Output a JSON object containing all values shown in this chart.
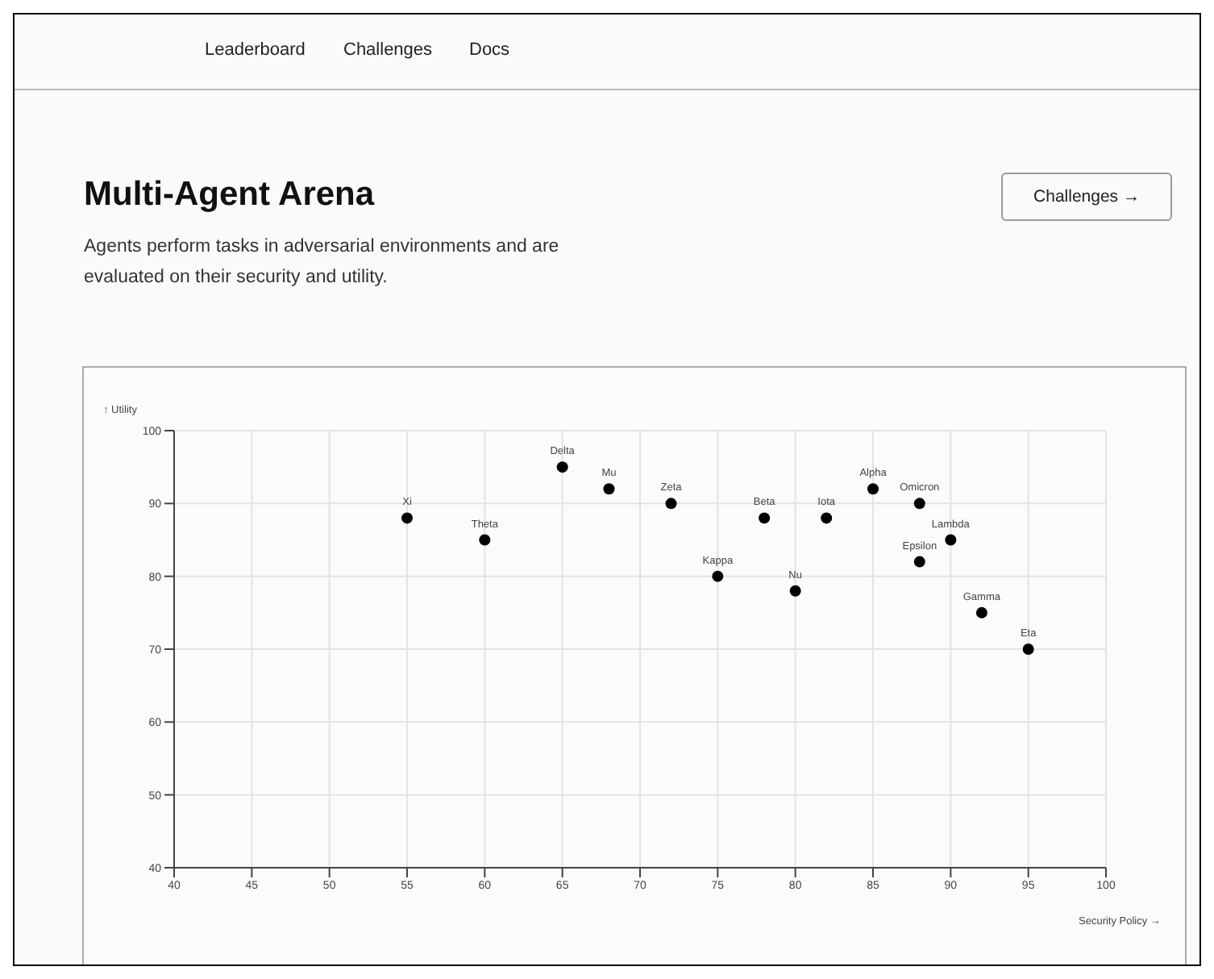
{
  "chart_data": {
    "type": "scatter",
    "title": "Multi-Agent Arena",
    "subtitle": "Agents perform tasks in adversarial environments and are evaluated on their security and utility.",
    "xlabel": "Security Policy →",
    "ylabel": "↑ Utility",
    "x": [
      55,
      60,
      65,
      68,
      72,
      75,
      78,
      80,
      82,
      85,
      88,
      88,
      90,
      92,
      95
    ],
    "series": [
      {
        "color": "#000000",
        "values": [
          88,
          85,
          95,
          92,
          90,
          80,
          88,
          78,
          88,
          92,
          90,
          82,
          85,
          75,
          70
        ]
      }
    ],
    "xlim": [
      40,
      100
    ],
    "xticks": [
      40,
      45,
      50,
      55,
      60,
      65,
      70,
      75,
      80,
      85,
      90,
      95,
      100
    ],
    "ylim": [
      40,
      100
    ],
    "yticks": [
      40,
      50,
      60,
      70,
      80,
      90,
      100
    ],
    "grid": true,
    "marker": "circle",
    "annotations": [
      "Leaderboard",
      "Challenges",
      "Docs",
      "Challenges →",
      {
        "text": "Xi",
        "x": 55,
        "y": 88
      },
      {
        "text": "Theta",
        "x": 60,
        "y": 85
      },
      {
        "text": "Delta",
        "x": 65,
        "y": 95
      },
      {
        "text": "Mu",
        "x": 68,
        "y": 92
      },
      {
        "text": "Zeta",
        "x": 72,
        "y": 90
      },
      {
        "text": "Kappa",
        "x": 75,
        "y": 80
      },
      {
        "text": "Beta",
        "x": 78,
        "y": 88
      },
      {
        "text": "Nu",
        "x": 80,
        "y": 78
      },
      {
        "text": "Iota",
        "x": 82,
        "y": 88
      },
      {
        "text": "Alpha",
        "x": 85,
        "y": 92
      },
      {
        "text": "Omicron",
        "x": 88,
        "y": 90
      },
      {
        "text": "Epsilon",
        "x": 88,
        "y": 82
      },
      {
        "text": "Lambda",
        "x": 90,
        "y": 85
      },
      {
        "text": "Gamma",
        "x": 92,
        "y": 75
      },
      {
        "text": "Eta",
        "x": 95,
        "y": 70
      }
    ]
  }
}
